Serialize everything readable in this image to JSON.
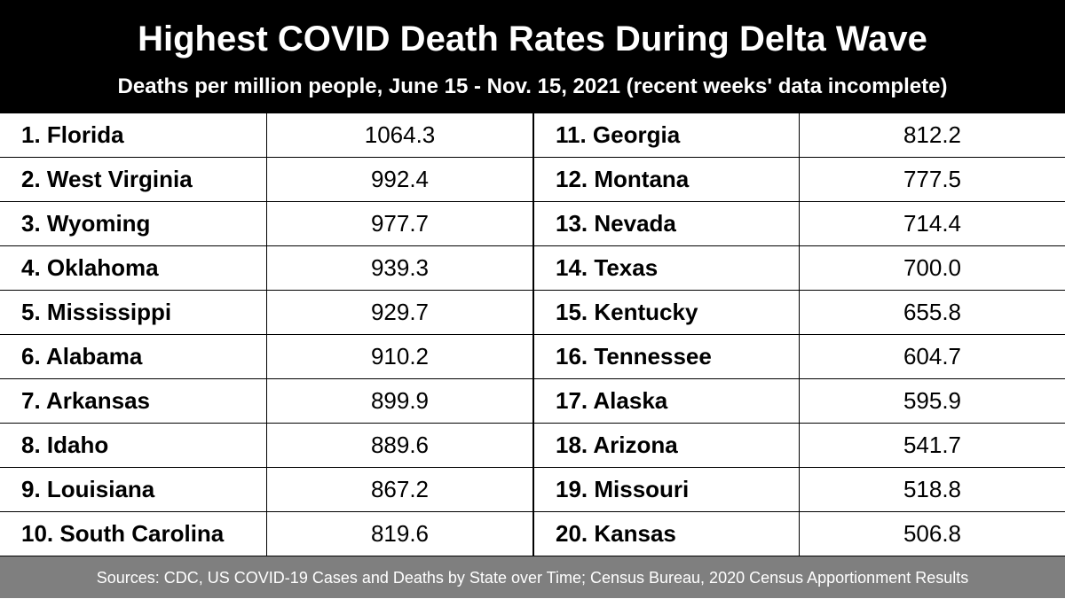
{
  "chart_data": {
    "type": "table",
    "title": "Highest COVID Death Rates During Delta Wave",
    "subtitle": "Deaths per million people, June 15 - Nov. 15, 2021 (recent weeks' data incomplete)",
    "left_column": [
      {
        "label": "1. Florida",
        "value": "1064.3"
      },
      {
        "label": "2. West Virginia",
        "value": "992.4"
      },
      {
        "label": "3. Wyoming",
        "value": "977.7"
      },
      {
        "label": "4. Oklahoma",
        "value": "939.3"
      },
      {
        "label": "5. Mississippi",
        "value": "929.7"
      },
      {
        "label": "6. Alabama",
        "value": "910.2"
      },
      {
        "label": "7. Arkansas",
        "value": "899.9"
      },
      {
        "label": "8. Idaho",
        "value": "889.6"
      },
      {
        "label": "9. Louisiana",
        "value": "867.2"
      },
      {
        "label": "10. South Carolina",
        "value": "819.6"
      }
    ],
    "right_column": [
      {
        "label": "11. Georgia",
        "value": "812.2"
      },
      {
        "label": "12. Montana",
        "value": "777.5"
      },
      {
        "label": "13. Nevada",
        "value": "714.4"
      },
      {
        "label": "14. Texas",
        "value": "700.0"
      },
      {
        "label": "15. Kentucky",
        "value": "655.8"
      },
      {
        "label": "16. Tennessee",
        "value": "604.7"
      },
      {
        "label": "17. Alaska",
        "value": "595.9"
      },
      {
        "label": "18. Arizona",
        "value": "541.7"
      },
      {
        "label": "19. Missouri",
        "value": "518.8"
      },
      {
        "label": "20. Kansas",
        "value": "506.8"
      }
    ],
    "source": "Sources: CDC, US COVID-19 Cases and Deaths by State over Time; Census Bureau, 2020 Census Apportionment Results"
  }
}
